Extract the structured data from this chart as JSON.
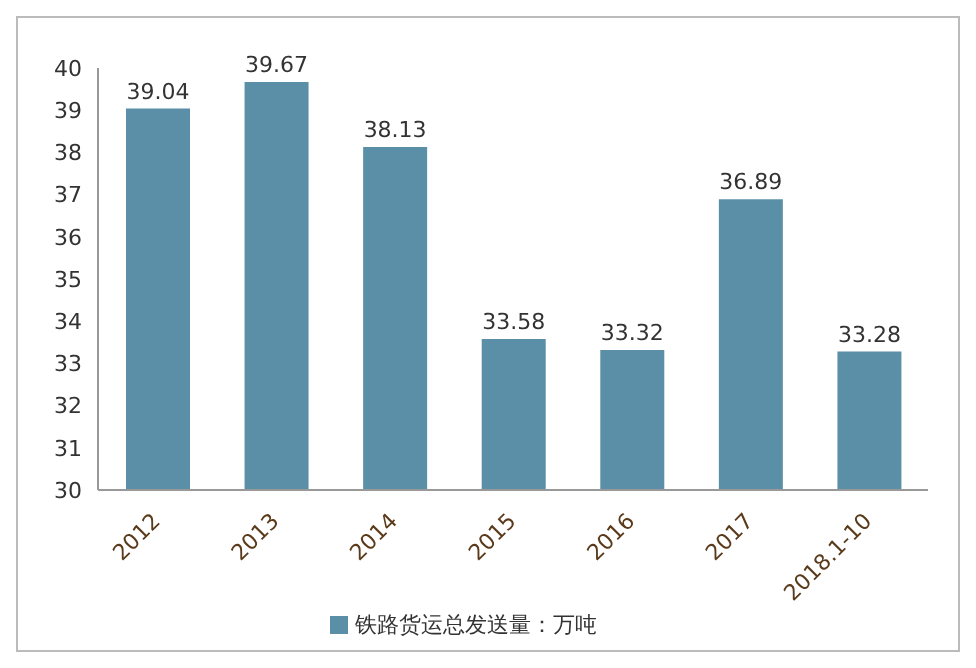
{
  "chart_data": {
    "type": "bar",
    "categories": [
      "2012",
      "2013",
      "2014",
      "2015",
      "2016",
      "2017",
      "2018.1-10"
    ],
    "series": [
      {
        "name": "铁路货运总发送量：万吨",
        "color": "#5b8fa8",
        "values": [
          39.04,
          39.67,
          38.13,
          33.58,
          33.32,
          36.89,
          33.28
        ]
      }
    ],
    "ylim": [
      30,
      40
    ],
    "yticks": [
      30,
      31,
      32,
      33,
      34,
      35,
      36,
      37,
      38,
      39,
      40
    ],
    "grid": false,
    "legend": "bottom",
    "data_labels": true
  }
}
